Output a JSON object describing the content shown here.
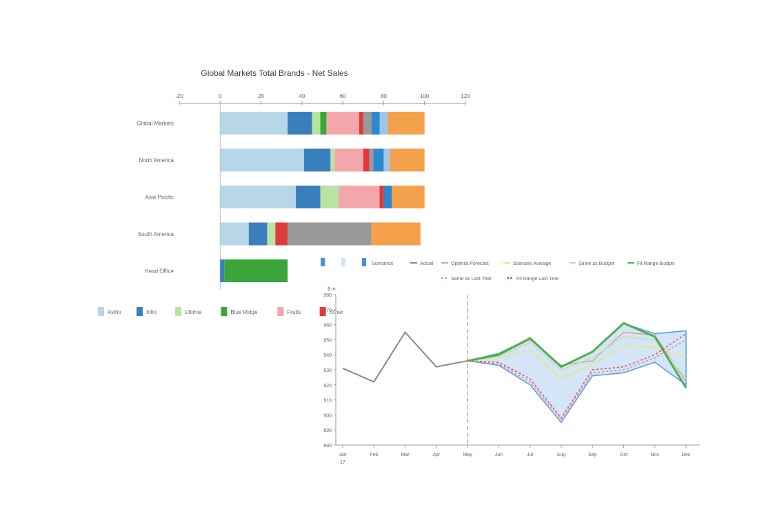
{
  "chart_data": [
    {
      "type": "bar",
      "stacked": true,
      "orientation": "horizontal",
      "title": "Global Markets Total Brands - Net Sales",
      "xlim": [
        -20,
        120
      ],
      "xticks": [
        -20,
        0,
        20,
        40,
        60,
        80,
        100,
        120
      ],
      "categories": [
        "Global Markets",
        "North America",
        "Asia Pacific",
        "South America",
        "Head Office"
      ],
      "series": [
        {
          "name": "Aviho",
          "color": "#b7d7e8",
          "values": [
            33,
            41,
            37,
            14,
            0
          ]
        },
        {
          "name": "Infio",
          "color": "#3a7fbd",
          "values": [
            12,
            13,
            12,
            9,
            2
          ]
        },
        {
          "name": "Ultimia",
          "color": "#b8e3a1",
          "values": [
            4,
            2,
            9,
            4,
            0
          ]
        },
        {
          "name": "Blue Ridge",
          "color": "#3aa63a",
          "values": [
            3,
            0,
            0,
            0,
            31
          ]
        },
        {
          "name": "Fruits",
          "color": "#f4a7ab",
          "values": [
            16,
            14,
            20,
            0,
            0
          ]
        },
        {
          "name": "Other",
          "color": "#e03b3b",
          "values": [
            2,
            3,
            2,
            6,
            0
          ]
        },
        {
          "name": "",
          "color": "#999999",
          "values": [
            4,
            2,
            0,
            41,
            0
          ]
        },
        {
          "name": "",
          "color": "#2f87d0",
          "values": [
            4,
            5,
            4,
            0,
            0
          ]
        },
        {
          "name": "",
          "color": "#9ec6e8",
          "values": [
            4,
            3,
            0,
            0,
            0
          ]
        },
        {
          "name": "",
          "color": "#f5a04a",
          "values": [
            18,
            17,
            16,
            24,
            0
          ]
        }
      ],
      "legend": [
        "Aviho",
        "Infio",
        "Ultimia",
        "Blue Ridge",
        "Fruits",
        "Other"
      ],
      "legend_position": "bottom"
    },
    {
      "type": "line",
      "ylabel": "$ m",
      "categories": [
        "Jan",
        "Feb",
        "Mar",
        "Apr",
        "May",
        "Jun",
        "Jul",
        "Aug",
        "Sep",
        "Oct",
        "Nov",
        "Dec"
      ],
      "x_sublabel": "17",
      "ylim": [
        880,
        980
      ],
      "yticks": [
        880,
        890,
        900,
        910,
        920,
        930,
        940,
        950,
        960,
        970,
        980
      ],
      "divider_after": "May",
      "legend": [
        "",
        "",
        "Scenarios",
        "Actual",
        "Optimist Forecast",
        "Scenario Average",
        "Same as Budget",
        "Fit Range Budget",
        "Same as Last Year",
        "Fit Range Last Year"
      ],
      "legend_position": "top",
      "series": [
        {
          "name": "Actual",
          "color": "#7f8a94",
          "values": [
            931,
            922,
            955,
            932,
            936,
            null,
            null,
            null,
            null,
            null,
            null,
            null
          ]
        },
        {
          "name": "Optimist Forecast",
          "color": "#d9a0a0",
          "values": [
            null,
            null,
            null,
            null,
            936,
            940,
            950,
            933,
            936,
            955,
            953,
            922
          ]
        },
        {
          "name": "Scenario Average",
          "color": "#e6e67a",
          "values": [
            null,
            null,
            null,
            null,
            936,
            938,
            943,
            924,
            934,
            946,
            945,
            938
          ]
        },
        {
          "name": "Same as Budget",
          "color": "#bfe3b0",
          "values": [
            null,
            null,
            null,
            null,
            936,
            939,
            948,
            930,
            938,
            952,
            950,
            924
          ]
        },
        {
          "name": "Fit Range Budget",
          "color": "#4caf50",
          "values": [
            null,
            null,
            null,
            null,
            936,
            940,
            951,
            932,
            942,
            961,
            952,
            918
          ]
        },
        {
          "name": "Same as Last Year",
          "color": "#e88a8a",
          "values": [
            null,
            null,
            null,
            null,
            936,
            934,
            922,
            897,
            928,
            930,
            938,
            950
          ]
        },
        {
          "name": "Fit Range Last Year",
          "color": "#d94a6a",
          "values": [
            null,
            null,
            null,
            null,
            936,
            935,
            924,
            898,
            930,
            932,
            940,
            954
          ]
        }
      ],
      "band": {
        "name": "Scenarios",
        "color": "#cfe3f6",
        "upper": [
          null,
          null,
          null,
          null,
          936,
          941,
          951,
          932,
          942,
          961,
          954,
          956
        ],
        "lower": [
          null,
          null,
          null,
          null,
          936,
          933,
          920,
          895,
          926,
          928,
          935,
          920
        ]
      }
    }
  ]
}
